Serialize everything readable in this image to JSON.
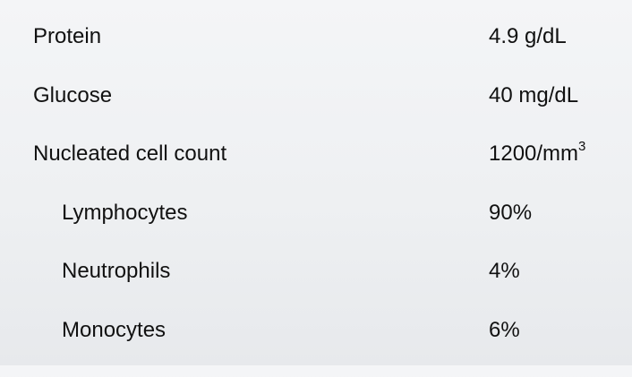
{
  "lab_results": {
    "rows": [
      {
        "name": "Protein",
        "value": "4.9 g/dL"
      },
      {
        "name": "Glucose",
        "value": "40 mg/dL"
      },
      {
        "name": "Nucleated cell count",
        "value": "1200/mm",
        "value_sup": "3"
      },
      {
        "name": "Lymphocytes",
        "value": "90%"
      },
      {
        "name": "Neutrophils",
        "value": "4%"
      },
      {
        "name": "Monocytes",
        "value": "6%"
      }
    ]
  }
}
